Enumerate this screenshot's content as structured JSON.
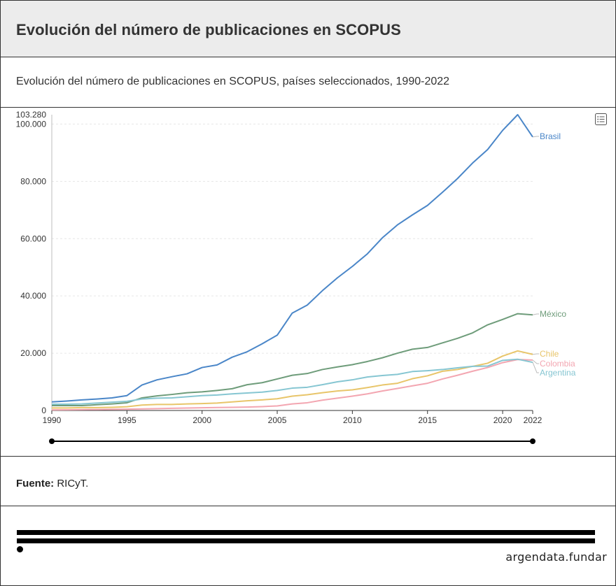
{
  "header": {
    "title": "Evolución del número de publicaciones en SCOPUS"
  },
  "subtitle": "Evolución del número de publicaciones en SCOPUS, países seleccionados, 1990-2022",
  "source": {
    "label": "Fuente:",
    "value": "RICyT."
  },
  "brand": "argendata.fundar",
  "icons": {
    "menu": "list-menu-icon"
  },
  "chart_data": {
    "type": "line",
    "x": [
      1990,
      1991,
      1992,
      1993,
      1994,
      1995,
      1996,
      1997,
      1998,
      1999,
      2000,
      2001,
      2002,
      2003,
      2004,
      2005,
      2006,
      2007,
      2008,
      2009,
      2010,
      2011,
      2012,
      2013,
      2014,
      2015,
      2016,
      2017,
      2018,
      2019,
      2020,
      2021,
      2022
    ],
    "xticks": [
      "1990",
      "1995",
      "2000",
      "2005",
      "2010",
      "2015",
      "2020",
      "2022"
    ],
    "yticks": [
      "0",
      "20.000",
      "40.000",
      "60.000",
      "80.000",
      "100.000",
      "103.280"
    ],
    "ylim": [
      0,
      103280
    ],
    "grid": true,
    "series": [
      {
        "name": "Brasil",
        "color": "#4a86c8",
        "values": [
          3000,
          3300,
          3700,
          4000,
          4400,
          5200,
          8900,
          10700,
          11800,
          12800,
          15000,
          15900,
          18600,
          20500,
          23300,
          26300,
          34000,
          36800,
          41800,
          46300,
          50300,
          54700,
          60300,
          64800,
          68300,
          71600,
          76200,
          81000,
          86400,
          91100,
          97800,
          103280,
          95500
        ]
      },
      {
        "name": "México",
        "color": "#6e9c7a",
        "values": [
          1700,
          1700,
          1700,
          2000,
          2300,
          2700,
          4400,
          5100,
          5600,
          6200,
          6500,
          7000,
          7600,
          9000,
          9700,
          11000,
          12300,
          12900,
          14300,
          15200,
          16000,
          17100,
          18400,
          20000,
          21400,
          22000,
          23600,
          25200,
          27100,
          29900,
          31800,
          33800,
          33400
        ]
      },
      {
        "name": "Chile",
        "color": "#e8c56a",
        "values": [
          900,
          900,
          1000,
          1000,
          1100,
          1300,
          1900,
          2100,
          2100,
          2300,
          2400,
          2600,
          3000,
          3400,
          3700,
          4100,
          5000,
          5500,
          6200,
          6800,
          7200,
          8000,
          8900,
          9500,
          11100,
          12100,
          13700,
          14300,
          15400,
          16500,
          19000,
          20800,
          19600
        ]
      },
      {
        "name": "Colombia",
        "color": "#f3a6b1",
        "values": [
          200,
          250,
          300,
          350,
          400,
          450,
          550,
          650,
          750,
          850,
          950,
          1050,
          1100,
          1200,
          1350,
          1600,
          2300,
          2700,
          3600,
          4300,
          5000,
          5800,
          6800,
          7700,
          8600,
          9500,
          11000,
          12300,
          13700,
          15000,
          16700,
          17800,
          17600
        ]
      },
      {
        "name": "Argentina",
        "color": "#86c6d2",
        "values": [
          2200,
          2200,
          2300,
          2600,
          2900,
          3200,
          4000,
          4300,
          4400,
          4800,
          5200,
          5400,
          5800,
          6100,
          6400,
          7000,
          7800,
          8100,
          9000,
          10000,
          10700,
          11700,
          12200,
          12600,
          13600,
          13900,
          14300,
          14900,
          15400,
          15500,
          17500,
          17900,
          16800
        ]
      }
    ]
  }
}
